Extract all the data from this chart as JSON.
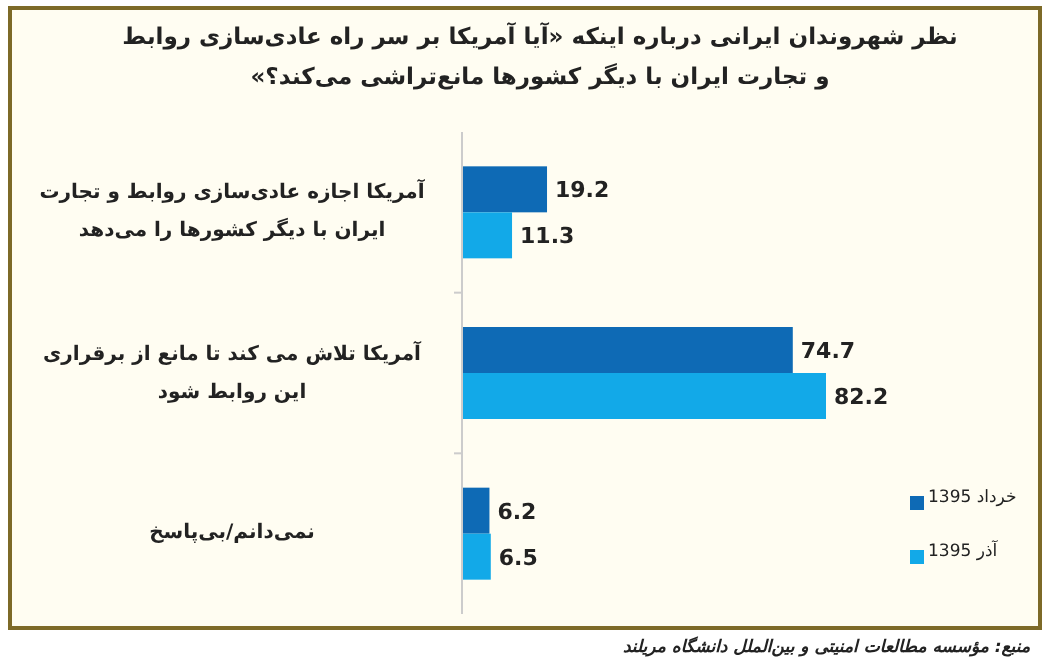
{
  "chart_data": {
    "type": "bar",
    "orientation": "horizontal",
    "title": "نظر شهروندان ایرانی درباره اینکه «آیا آمریکا بر سر راه عادی‌سازی روابط و تجارت ایران با دیگر کشورها مانع‌تراشی می‌کند؟»",
    "categories": [
      "آمریکا اجازه عادی‌سازی روابط و تجارت ایران با دیگر کشورها را می‌دهد",
      "آمریکا تلاش می کند تا مانع از برقراری این روابط شود",
      "نمی‌دانم/بی‌پاسخ"
    ],
    "series": [
      {
        "name": "خرداد 1395",
        "color": "#0e6ab5",
        "values": [
          19.2,
          74.7,
          6.2
        ]
      },
      {
        "name": "آذر 1395",
        "color": "#12a9e8",
        "values": [
          11.3,
          82.2,
          6.5
        ]
      }
    ],
    "data_labels": true,
    "legend": "bottom right",
    "annotations": [
      "منبع: مؤسسه مطالعات امنیتی و بین‌الملل دانشگاه مریلند"
    ]
  }
}
